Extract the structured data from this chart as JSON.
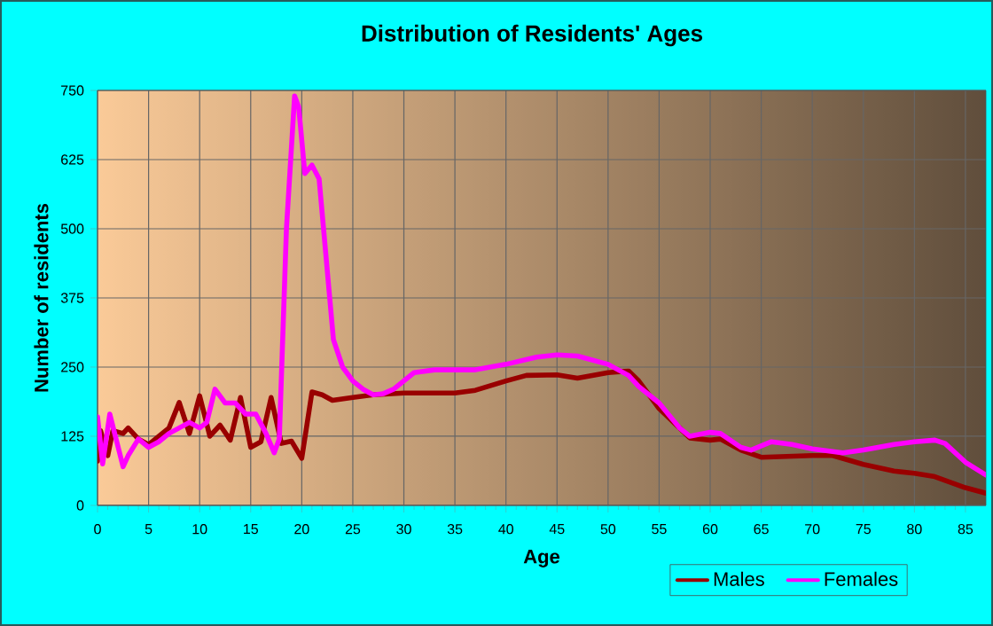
{
  "chart_data": {
    "type": "line",
    "title": "Distribution of Residents' Ages",
    "xlabel": "Age",
    "ylabel": "Number of residents",
    "xlim": [
      0,
      87
    ],
    "ylim": [
      0,
      750
    ],
    "xticks": [
      0,
      5,
      10,
      15,
      20,
      25,
      30,
      35,
      40,
      45,
      50,
      55,
      60,
      65,
      70,
      75,
      80,
      85
    ],
    "yticks": [
      0,
      125,
      250,
      375,
      500,
      625,
      750
    ],
    "grid": true,
    "legend": "bottom right",
    "line_style": "solid",
    "marker": "none",
    "series": [
      {
        "name": "Males",
        "color": "#990000",
        "x": [
          0,
          0.3,
          1,
          1.5,
          2.5,
          3,
          4,
          5,
          7,
          8,
          9,
          10,
          11,
          12,
          13,
          14,
          15,
          16,
          17,
          18,
          19,
          20,
          21,
          22,
          23,
          25,
          27,
          30,
          35,
          37,
          40,
          42,
          45,
          47,
          50,
          52,
          53,
          55,
          57,
          58,
          60,
          61,
          63,
          65,
          70,
          72,
          75,
          78,
          80,
          82,
          85,
          87
        ],
        "values": [
          80,
          135,
          90,
          135,
          130,
          140,
          120,
          110,
          140,
          186,
          130,
          198,
          125,
          145,
          118,
          195,
          105,
          115,
          195,
          112,
          116,
          85,
          205,
          200,
          190,
          195,
          200,
          203,
          203,
          208,
          225,
          235,
          236,
          230,
          240,
          243,
          225,
          175,
          140,
          122,
          118,
          120,
          100,
          87,
          90,
          90,
          74,
          62,
          58,
          52,
          32,
          22
        ]
      },
      {
        "name": "Females",
        "color": "#ff00ff",
        "x": [
          0,
          0.5,
          1.2,
          2.5,
          3,
          4,
          5,
          6,
          7,
          8,
          9,
          10,
          10.7,
          11.5,
          12.5,
          13.5,
          14.5,
          15.5,
          16.5,
          17.3,
          17.8,
          18.5,
          19.3,
          19.7,
          20.3,
          21,
          21.7,
          23.1,
          24,
          25,
          26,
          27,
          28,
          29,
          30,
          31,
          33,
          35,
          37,
          40,
          43,
          45,
          47,
          50,
          52,
          53,
          55,
          57,
          58,
          60,
          61,
          63,
          64,
          66,
          68,
          70,
          73,
          75,
          78,
          80,
          82,
          83,
          85,
          87
        ],
        "values": [
          160,
          75,
          165,
          70,
          90,
          120,
          105,
          115,
          130,
          140,
          150,
          140,
          150,
          210,
          185,
          185,
          165,
          165,
          130,
          95,
          120,
          500,
          740,
          720,
          600,
          615,
          590,
          300,
          250,
          225,
          210,
          200,
          202,
          210,
          225,
          240,
          245,
          245,
          245,
          255,
          268,
          272,
          270,
          255,
          235,
          215,
          185,
          140,
          125,
          132,
          130,
          105,
          100,
          115,
          110,
          102,
          95,
          100,
          110,
          115,
          118,
          112,
          78,
          55
        ]
      }
    ]
  }
}
